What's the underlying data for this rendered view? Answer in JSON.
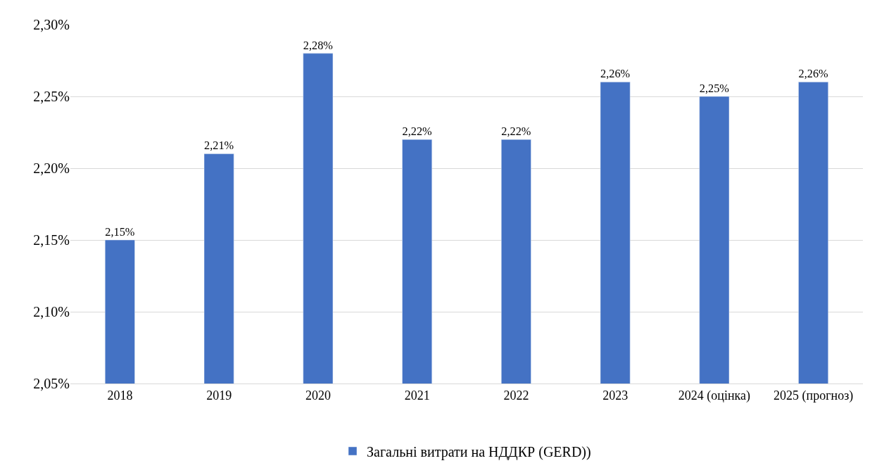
{
  "chart_data": {
    "type": "bar",
    "categories": [
      "2018",
      "2019",
      "2020",
      "2021",
      "2022",
      "2023",
      "2024 (оцінка)",
      "2025 (прогноз)"
    ],
    "series": [
      {
        "name": "Загальні витрати на НДДКР (GERD))",
        "color": "#4472c4",
        "values": [
          2.15,
          2.21,
          2.28,
          2.22,
          2.22,
          2.26,
          2.25,
          2.26
        ],
        "value_labels": [
          "2,15%",
          "2,21%",
          "2,28%",
          "2,22%",
          "2,22%",
          "2,26%",
          "2,25%",
          "2,26%"
        ]
      }
    ],
    "ylim": [
      2.05,
      2.3
    ],
    "yticks": [
      {
        "value": 2.05,
        "label": "2,05%"
      },
      {
        "value": 2.1,
        "label": "2,10%"
      },
      {
        "value": 2.15,
        "label": "2,15%"
      },
      {
        "value": 2.2,
        "label": "2,20%"
      },
      {
        "value": 2.25,
        "label": "2,25%"
      },
      {
        "value": 2.3,
        "label": "2,30%"
      }
    ],
    "grid": "y",
    "legend": "bottom"
  }
}
